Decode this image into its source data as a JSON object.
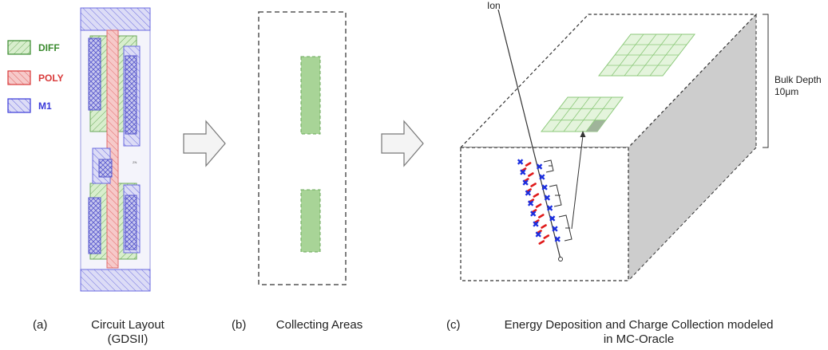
{
  "legend": [
    {
      "label": "DIFF",
      "color": "#3a8a2e"
    },
    {
      "label": "POLY",
      "color": "#d93a3a"
    },
    {
      "label": "M1",
      "color": "#3a3ad9"
    }
  ],
  "panel_c": {
    "ion_label": "Ion",
    "bulk_depth_line1": "Bulk Depth",
    "bulk_depth_line2": "10μm"
  },
  "captions": {
    "a_tag": "(a)",
    "a_line1": "Circuit Layout",
    "a_line2": "(GDSII)",
    "b_tag": "(b)",
    "b_text": "Collecting Areas",
    "c_tag": "(c)",
    "c_line1": "Energy Deposition and Charge Collection modeled",
    "c_line2": "in MC-Oracle"
  },
  "colors": {
    "diff_fill": "#c9e6bd",
    "diff_stroke": "#6aa85a",
    "poly": "#e26a6a",
    "m1": "#6b6be0",
    "collect_fill": "#a8d497",
    "grid_fill": "#e4f4dc",
    "grid_line": "#8cc97a",
    "charge_plus": "#1a2ee0",
    "charge_minus": "#e01a1a",
    "side_face": "#cfcfcf"
  }
}
